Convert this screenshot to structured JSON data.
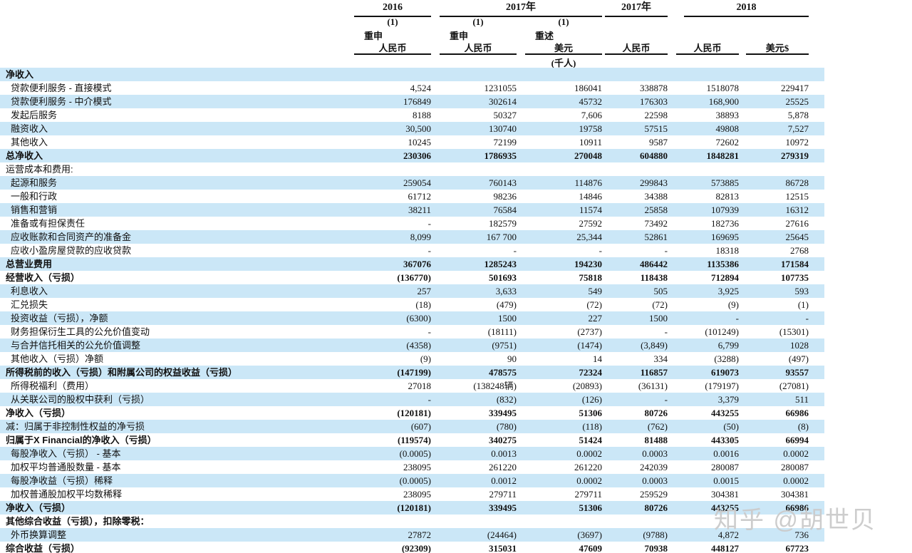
{
  "colors": {
    "row_shade": "#cbe7f7",
    "text": "#111111"
  },
  "watermark": {
    "text": "知乎 @胡世贝"
  },
  "header": {
    "groups": [
      {
        "label": "2016"
      },
      {
        "label": "2017年"
      },
      {
        "label": "2017年"
      },
      {
        "label": "2018"
      }
    ],
    "columns": [
      {
        "note": "(1)",
        "restate": "重申",
        "currency": "人民币"
      },
      {
        "note": "(1)",
        "restate": "重申",
        "currency": "人民币"
      },
      {
        "note": "(1)",
        "restate": "重述",
        "currency": "美元"
      },
      {
        "note": "",
        "restate": "",
        "currency": "人民币"
      },
      {
        "note": "",
        "restate": "",
        "currency": "人民币"
      },
      {
        "note": "",
        "restate": "",
        "currency": "美元$"
      }
    ],
    "unit_note": "(千人)"
  },
  "rows": [
    {
      "label": "净收入",
      "values": [
        "",
        "",
        "",
        "",
        "",
        ""
      ],
      "bold": true,
      "shaded": true,
      "indent": false
    },
    {
      "label": "贷款便利服务 - 直接模式",
      "values": [
        "4,524",
        "1231055",
        "186041",
        "338878",
        "1518078",
        "229417"
      ],
      "bold": false,
      "shaded": false,
      "indent": true
    },
    {
      "label": "贷款便利服务 - 中介模式",
      "values": [
        "176849",
        "302614",
        "45732",
        "176303",
        "168,900",
        "25525"
      ],
      "bold": false,
      "shaded": true,
      "indent": true
    },
    {
      "label": "发起后服务",
      "values": [
        "8188",
        "50327",
        "7,606",
        "22598",
        "38893",
        "5,878"
      ],
      "bold": false,
      "shaded": false,
      "indent": true
    },
    {
      "label": "融资收入",
      "values": [
        "30,500",
        "130740",
        "19758",
        "57515",
        "49808",
        "7,527"
      ],
      "bold": false,
      "shaded": true,
      "indent": true
    },
    {
      "label": "其他收入",
      "values": [
        "10245",
        "72199",
        "10911",
        "9587",
        "72602",
        "10972"
      ],
      "bold": false,
      "shaded": false,
      "indent": true
    },
    {
      "label": "总净收入",
      "values": [
        "230306",
        "1786935",
        "270048",
        "604880",
        "1848281",
        "279319"
      ],
      "bold": true,
      "shaded": true,
      "indent": false
    },
    {
      "label": "运营成本和费用:",
      "values": [
        "",
        "",
        "",
        "",
        "",
        ""
      ],
      "bold": false,
      "shaded": false,
      "indent": false
    },
    {
      "label": "起源和服务",
      "values": [
        "259054",
        "760143",
        "114876",
        "299843",
        "573885",
        "86728"
      ],
      "bold": false,
      "shaded": true,
      "indent": true
    },
    {
      "label": "一般和行政",
      "values": [
        "61712",
        "98236",
        "14846",
        "34388",
        "82813",
        "12515"
      ],
      "bold": false,
      "shaded": false,
      "indent": true
    },
    {
      "label": "销售和营销",
      "values": [
        "38211",
        "76584",
        "11574",
        "25858",
        "107939",
        "16312"
      ],
      "bold": false,
      "shaded": true,
      "indent": true
    },
    {
      "label": "准备或有担保责任",
      "values": [
        "-",
        "182579",
        "27592",
        "73492",
        "182736",
        "27616"
      ],
      "bold": false,
      "shaded": false,
      "indent": true
    },
    {
      "label": "应收账款和合同资产的准备金",
      "values": [
        "8,099",
        "167 700",
        "25,344",
        "52861",
        "169695",
        "25645"
      ],
      "bold": false,
      "shaded": true,
      "indent": true
    },
    {
      "label": "应收小盈房屋贷款的应收贷款",
      "values": [
        "-",
        "-",
        "-",
        "-",
        "18318",
        "2768"
      ],
      "bold": false,
      "shaded": false,
      "indent": true
    },
    {
      "label": "总营业费用",
      "values": [
        "367076",
        "1285243",
        "194230",
        "486442",
        "1135386",
        "171584"
      ],
      "bold": true,
      "shaded": true,
      "indent": false
    },
    {
      "label": "经营收入（亏损）",
      "values": [
        "(136770)",
        "501693",
        "75818",
        "118438",
        "712894",
        "107735"
      ],
      "bold": true,
      "shaded": false,
      "indent": false
    },
    {
      "label": "利息收入",
      "values": [
        "257",
        "3,633",
        "549",
        "505",
        "3,925",
        "593"
      ],
      "bold": false,
      "shaded": true,
      "indent": true
    },
    {
      "label": "汇兑损失",
      "values": [
        "(18)",
        "(479)",
        "(72)",
        "(72)",
        "(9)",
        "(1)"
      ],
      "bold": false,
      "shaded": false,
      "indent": true
    },
    {
      "label": "投资收益（亏损），净额",
      "values": [
        "(6300)",
        "1500",
        "227",
        "1500",
        "-",
        "-"
      ],
      "bold": false,
      "shaded": true,
      "indent": true
    },
    {
      "label": "财务担保衍生工具的公允价值变动",
      "values": [
        "-",
        "(18111)",
        "(2737)",
        "-",
        "(101249)",
        "(15301)"
      ],
      "bold": false,
      "shaded": false,
      "indent": true
    },
    {
      "label": "与合并信托相关的公允价值调整",
      "values": [
        "(4358)",
        "(9751)",
        "(1474)",
        "(3,849)",
        "6,799",
        "1028"
      ],
      "bold": false,
      "shaded": true,
      "indent": true
    },
    {
      "label": "其他收入（亏损）净额",
      "values": [
        "(9)",
        "90",
        "14",
        "334",
        "(3288)",
        "(497)"
      ],
      "bold": false,
      "shaded": false,
      "indent": true
    },
    {
      "label": "所得税前的收入（亏损）和附属公司的权益收益（亏损）",
      "values": [
        "(147199)",
        "478575",
        "72324",
        "116857",
        "619073",
        "93557"
      ],
      "bold": true,
      "shaded": true,
      "indent": false
    },
    {
      "label": "所得税福利（费用）",
      "values": [
        "27018",
        "(138248辆)",
        "(20893)",
        "(36131)",
        "(179197)",
        "(27081)"
      ],
      "bold": false,
      "shaded": false,
      "indent": true
    },
    {
      "label": "从关联公司的股权中获利（亏损）",
      "values": [
        "-",
        "(832)",
        "(126)",
        "-",
        "3,379",
        "511"
      ],
      "bold": false,
      "shaded": true,
      "indent": true
    },
    {
      "label": "净收入（亏损）",
      "values": [
        "(120181)",
        "339495",
        "51306",
        "80726",
        "443255",
        "66986"
      ],
      "bold": true,
      "shaded": false,
      "indent": false
    },
    {
      "label": "减：归属于非控制性权益的净亏损",
      "values": [
        "(607)",
        "(780)",
        "(118)",
        "(762)",
        "(50)",
        "(8)"
      ],
      "bold": false,
      "shaded": true,
      "indent": false
    },
    {
      "label": "归属于X Financial的净收入（亏损）",
      "values": [
        "(119574)",
        "340275",
        "51424",
        "81488",
        "443305",
        "66994"
      ],
      "bold": true,
      "shaded": false,
      "indent": false
    },
    {
      "label": "每股净收入（亏损） - 基本",
      "values": [
        "(0.0005)",
        "0.0013",
        "0.0002",
        "0.0003",
        "0.0016",
        "0.0002"
      ],
      "bold": false,
      "shaded": true,
      "indent": true
    },
    {
      "label": "加权平均普通股数量 - 基本",
      "values": [
        "238095",
        "261220",
        "261220",
        "242039",
        "280087",
        "280087"
      ],
      "bold": false,
      "shaded": false,
      "indent": true
    },
    {
      "label": "每股净收益（亏损）稀释",
      "values": [
        "(0.0005)",
        "0.0012",
        "0.0002",
        "0.0003",
        "0.0015",
        "0.0002"
      ],
      "bold": false,
      "shaded": true,
      "indent": true
    },
    {
      "label": "加权普通股加权平均数稀释",
      "values": [
        "238095",
        "279711",
        "279711",
        "259529",
        "304381",
        "304381"
      ],
      "bold": false,
      "shaded": false,
      "indent": true
    },
    {
      "label": "净收入（亏损）",
      "values": [
        "(120181)",
        "339495",
        "51306",
        "80726",
        "443255",
        "66986"
      ],
      "bold": true,
      "shaded": true,
      "indent": false
    },
    {
      "label": "其他综合收益（亏损），扣除零税：",
      "values": [
        "",
        "",
        "",
        "",
        "",
        ""
      ],
      "bold": true,
      "shaded": false,
      "indent": false
    },
    {
      "label": "外币换算调整",
      "values": [
        "27872",
        "(24464)",
        "(3697)",
        "(9788)",
        "4,872",
        "736"
      ],
      "bold": false,
      "shaded": true,
      "indent": true
    },
    {
      "label": "综合收益（亏损）",
      "values": [
        "(92309)",
        "315031",
        "47609",
        "70938",
        "448127",
        "67723"
      ],
      "bold": true,
      "shaded": false,
      "indent": false
    }
  ]
}
